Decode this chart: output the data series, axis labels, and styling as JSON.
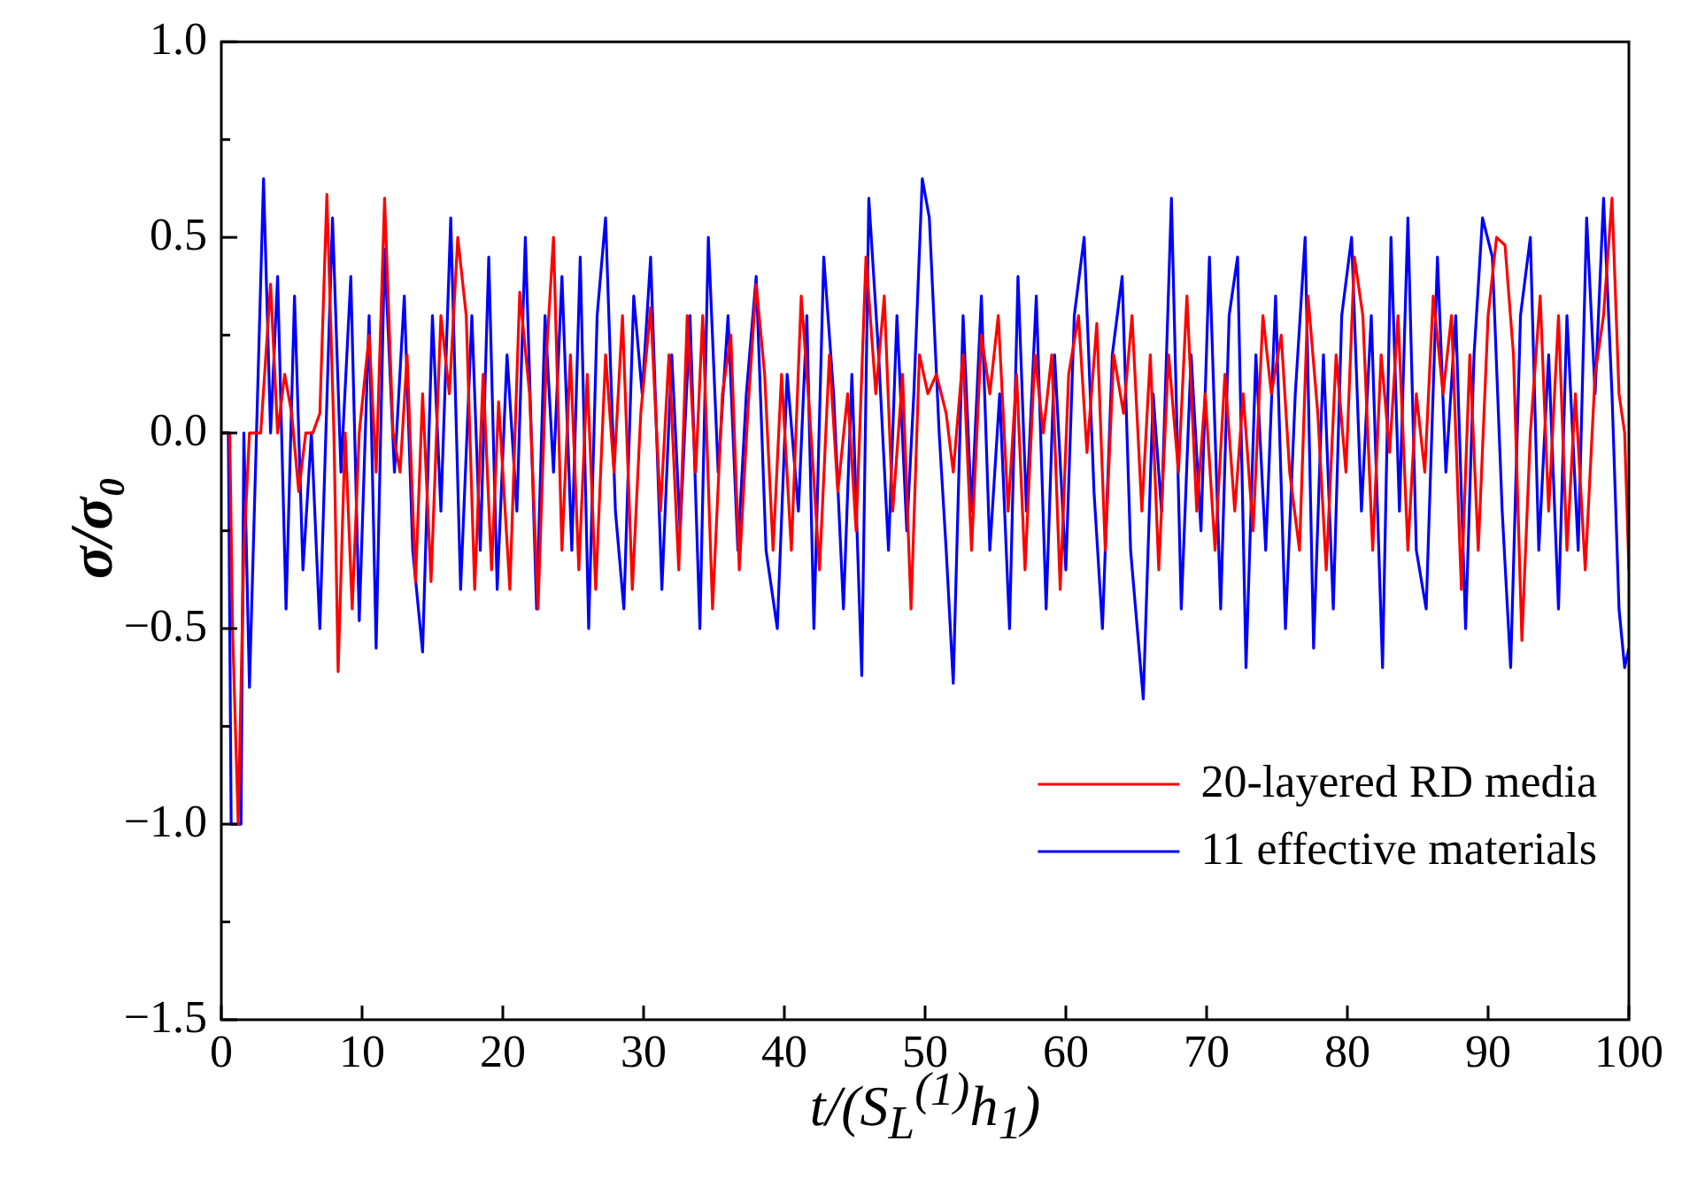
{
  "chart_data": {
    "type": "line",
    "xlabel": "t/(S$_{L}$$^{(1)}$h$_{1}$)",
    "ylabel": "σ/σ₀",
    "xlim": [
      0,
      100
    ],
    "xticks": [
      0,
      10,
      20,
      30,
      40,
      50,
      60,
      70,
      80,
      90,
      100
    ],
    "ylim": [
      -1.5,
      1.0
    ],
    "yticks": [
      {
        "value": -1.5,
        "label": "−1.5"
      },
      {
        "value": -1.25,
        "label": null
      },
      {
        "value": -1.0,
        "label": "−1.0"
      },
      {
        "value": -0.75,
        "label": null
      },
      {
        "value": -0.5,
        "label": "−0.5"
      },
      {
        "value": -0.25,
        "label": null
      },
      {
        "value": 0,
        "label": "0.0"
      },
      {
        "value": 0.25,
        "label": null
      },
      {
        "value": 0.5,
        "label": "0.5"
      },
      {
        "value": 0.75,
        "label": null
      },
      {
        "value": 1.0,
        "label": "1.0"
      }
    ],
    "grid": false,
    "legend": "bottom right",
    "marker": "none",
    "line_style": "solid",
    "series": [
      {
        "name": "20-layered RD media",
        "color": "#ff0000",
        "x": [
          0,
          0.6,
          0.8,
          1.2,
          1.6,
          2,
          2.8,
          3.5,
          4,
          4.5,
          5,
          5.5,
          6,
          6.5,
          7,
          7.5,
          8,
          8.3,
          8.8,
          9.3,
          9.8,
          10.5,
          11,
          11.6,
          12.2,
          12.7,
          13.2,
          13.8,
          14.3,
          14.9,
          15.6,
          16.2,
          16.8,
          17.4,
          18,
          18.6,
          19.2,
          19.7,
          20.5,
          21.2,
          21.9,
          22.5,
          23.1,
          23.6,
          24.2,
          24.8,
          25.4,
          26,
          26.6,
          27.3,
          27.9,
          28.5,
          29.2,
          29.8,
          30.5,
          31.2,
          31.8,
          32.5,
          33.1,
          33.7,
          34.2,
          34.9,
          35.6,
          36.2,
          36.8,
          37.4,
          38,
          38.6,
          39.2,
          39.8,
          40.5,
          41.2,
          41.8,
          42.5,
          43.2,
          43.8,
          44.5,
          45.1,
          45.8,
          46.5,
          47.1,
          47.7,
          48.4,
          49,
          49.6,
          50.2,
          50.8,
          51.5,
          52,
          52.7,
          53.3,
          54,
          54.6,
          55.2,
          55.9,
          56.5,
          57.1,
          57.8,
          58.4,
          59,
          59.6,
          60.2,
          60.9,
          61.5,
          62.2,
          62.8,
          63.4,
          64.1,
          64.7,
          65.4,
          66,
          66.6,
          67.3,
          68,
          68.6,
          69.3,
          69.9,
          70.6,
          71.3,
          72,
          72.6,
          73.3,
          74,
          74.6,
          75.3,
          75.9,
          76.6,
          77.2,
          77.9,
          78.5,
          79.2,
          79.9,
          80.5,
          81.1,
          81.8,
          82.4,
          83,
          83.6,
          84.3,
          84.9,
          85.5,
          86.1,
          86.8,
          87.4,
          88.1,
          88.7,
          89.3,
          90,
          90.6,
          91.2,
          91.8,
          92.4,
          93,
          93.7,
          94.3,
          95,
          95.6,
          96.2,
          96.9,
          97.6,
          98.2,
          98.8,
          99.3,
          99.7,
          100
        ],
        "values": [
          0,
          0,
          -0.5,
          -1,
          -0.3,
          0,
          0,
          0.38,
          0,
          0.15,
          0.05,
          -0.15,
          0,
          0,
          0.05,
          0.61,
          0,
          -0.61,
          0,
          -0.45,
          0,
          0.25,
          -0.1,
          0.6,
          0,
          -0.1,
          0.2,
          -0.38,
          0.1,
          -0.38,
          0.3,
          0.1,
          0.5,
          0.3,
          -0.4,
          0.15,
          -0.35,
          0.08,
          -0.4,
          0.36,
          0.1,
          -0.45,
          0.2,
          0.5,
          -0.3,
          0.2,
          -0.35,
          0.15,
          -0.4,
          0.2,
          -0.1,
          0.3,
          -0.4,
          0.05,
          0.32,
          -0.2,
          0.2,
          -0.35,
          0.3,
          -0.1,
          0.3,
          -0.45,
          0.1,
          0.25,
          -0.35,
          0.05,
          0.38,
          0.15,
          -0.3,
          0.15,
          -0.3,
          0.35,
          0.05,
          -0.35,
          0.2,
          -0.15,
          0.1,
          -0.25,
          0.45,
          0.1,
          0.35,
          -0.2,
          0.15,
          -0.45,
          0.2,
          0.1,
          0.15,
          0.05,
          -0.1,
          0.2,
          -0.3,
          0.25,
          0.1,
          0.3,
          -0.2,
          0.15,
          -0.35,
          0.2,
          0,
          0.2,
          -0.4,
          0.15,
          0.3,
          -0.05,
          0.28,
          -0.3,
          0.2,
          0.05,
          0.3,
          -0.2,
          0.2,
          -0.35,
          0.2,
          -0.1,
          0.35,
          -0.2,
          0.1,
          -0.3,
          0.15,
          -0.2,
          0.1,
          -0.25,
          0.3,
          0.1,
          0.25,
          -0.1,
          -0.3,
          0.35,
          0.05,
          -0.35,
          0.2,
          -0.1,
          0.45,
          0.3,
          -0.3,
          0.2,
          -0.05,
          0.3,
          -0.3,
          0.1,
          -0.1,
          0.35,
          0.1,
          0.3,
          -0.4,
          0.2,
          -0.3,
          0.3,
          0.5,
          0.48,
          0.2,
          -0.53,
          0,
          0.35,
          -0.2,
          0.3,
          -0.3,
          0.1,
          -0.35,
          0.15,
          0.3,
          0.6,
          0.1,
          0,
          -0.35
        ]
      },
      {
        "name": "11 effective materials",
        "color": "#0000ff",
        "x": [
          0,
          0.5,
          0.7,
          1.4,
          1.6,
          2,
          2.5,
          3,
          3.5,
          4,
          4.6,
          5.2,
          5.8,
          6.4,
          7,
          7.9,
          8.5,
          9.2,
          9.8,
          10.5,
          11,
          11.6,
          12.3,
          13,
          13.6,
          14.3,
          15,
          15.6,
          16.3,
          17,
          17.8,
          18.4,
          19,
          19.6,
          20.3,
          21,
          21.6,
          22.4,
          23,
          23.6,
          24.2,
          24.9,
          25.5,
          26.1,
          26.7,
          27.3,
          28,
          28.6,
          29.3,
          29.9,
          30.5,
          31.3,
          32,
          32.6,
          33.3,
          34,
          34.6,
          35.3,
          36,
          36.7,
          37.3,
          38,
          38.7,
          39.5,
          40.2,
          41,
          41.6,
          42.1,
          42.8,
          43.5,
          44.2,
          44.8,
          45.5,
          46,
          46.7,
          47.4,
          48,
          48.7,
          49.2,
          49.8,
          50.3,
          51,
          51.5,
          52,
          52.7,
          53.3,
          54,
          54.6,
          55.3,
          56,
          56.6,
          57.2,
          57.9,
          58.6,
          59.2,
          60,
          60.6,
          61.3,
          62,
          62.6,
          63.3,
          64,
          64.6,
          65.5,
          66.2,
          66.8,
          67.5,
          68.2,
          68.9,
          69.6,
          70.2,
          71,
          71.6,
          72.2,
          72.8,
          73.5,
          74.2,
          74.9,
          75.6,
          76.3,
          77,
          77.6,
          78.3,
          79,
          79.6,
          80.3,
          81,
          81.7,
          82.5,
          83.1,
          83.7,
          84.3,
          84.9,
          85.6,
          86.4,
          87,
          87.7,
          88.4,
          89,
          89.6,
          90.3,
          91,
          91.6,
          92.3,
          93,
          93.6,
          94.3,
          95,
          95.6,
          96.4,
          97,
          97.6,
          98.2,
          98.8,
          99.3,
          99.7,
          100
        ],
        "values": [
          0,
          0,
          -1,
          -1,
          0,
          -0.65,
          0,
          0.65,
          0,
          0.4,
          -0.45,
          0.35,
          -0.35,
          0,
          -0.5,
          0.55,
          -0.1,
          0.4,
          -0.48,
          0.3,
          -0.55,
          0.47,
          -0.1,
          0.35,
          -0.3,
          -0.56,
          0.3,
          -0.2,
          0.55,
          -0.4,
          0.3,
          -0.3,
          0.45,
          -0.4,
          0.2,
          -0.2,
          0.5,
          -0.45,
          0.3,
          -0.1,
          0.4,
          -0.3,
          0.45,
          -0.5,
          0.3,
          0.55,
          -0.2,
          -0.45,
          0.35,
          0.1,
          0.45,
          -0.4,
          0.2,
          -0.25,
          0.3,
          -0.5,
          0.5,
          -0.1,
          0.3,
          -0.3,
          0.1,
          0.4,
          -0.3,
          -0.5,
          0.15,
          -0.2,
          0.3,
          -0.5,
          0.45,
          0.1,
          -0.45,
          0.15,
          -0.62,
          0.6,
          0.2,
          -0.3,
          0.3,
          -0.25,
          0.1,
          0.65,
          0.55,
          0,
          -0.3,
          -0.64,
          0.3,
          -0.2,
          0.35,
          -0.3,
          0.1,
          -0.5,
          0.4,
          -0.2,
          0.35,
          -0.45,
          0.2,
          -0.35,
          0.3,
          0.5,
          -0.15,
          -0.5,
          0.2,
          0.4,
          -0.3,
          -0.68,
          0.1,
          -0.2,
          0.6,
          -0.45,
          0.2,
          -0.25,
          0.45,
          -0.45,
          0.3,
          0.45,
          -0.6,
          0.2,
          -0.3,
          0.35,
          -0.5,
          0.1,
          0.5,
          -0.55,
          0.2,
          -0.45,
          0.3,
          0.5,
          -0.2,
          0.3,
          -0.6,
          0.5,
          -0.2,
          0.55,
          -0.3,
          -0.45,
          0.45,
          -0.1,
          0.3,
          -0.5,
          0.2,
          0.55,
          0.45,
          -0.2,
          -0.6,
          0.3,
          0.5,
          -0.3,
          0.2,
          -0.45,
          0.3,
          -0.3,
          0.55,
          0.1,
          0.6,
          0.1,
          -0.45,
          -0.6,
          -0.55
        ]
      }
    ]
  }
}
